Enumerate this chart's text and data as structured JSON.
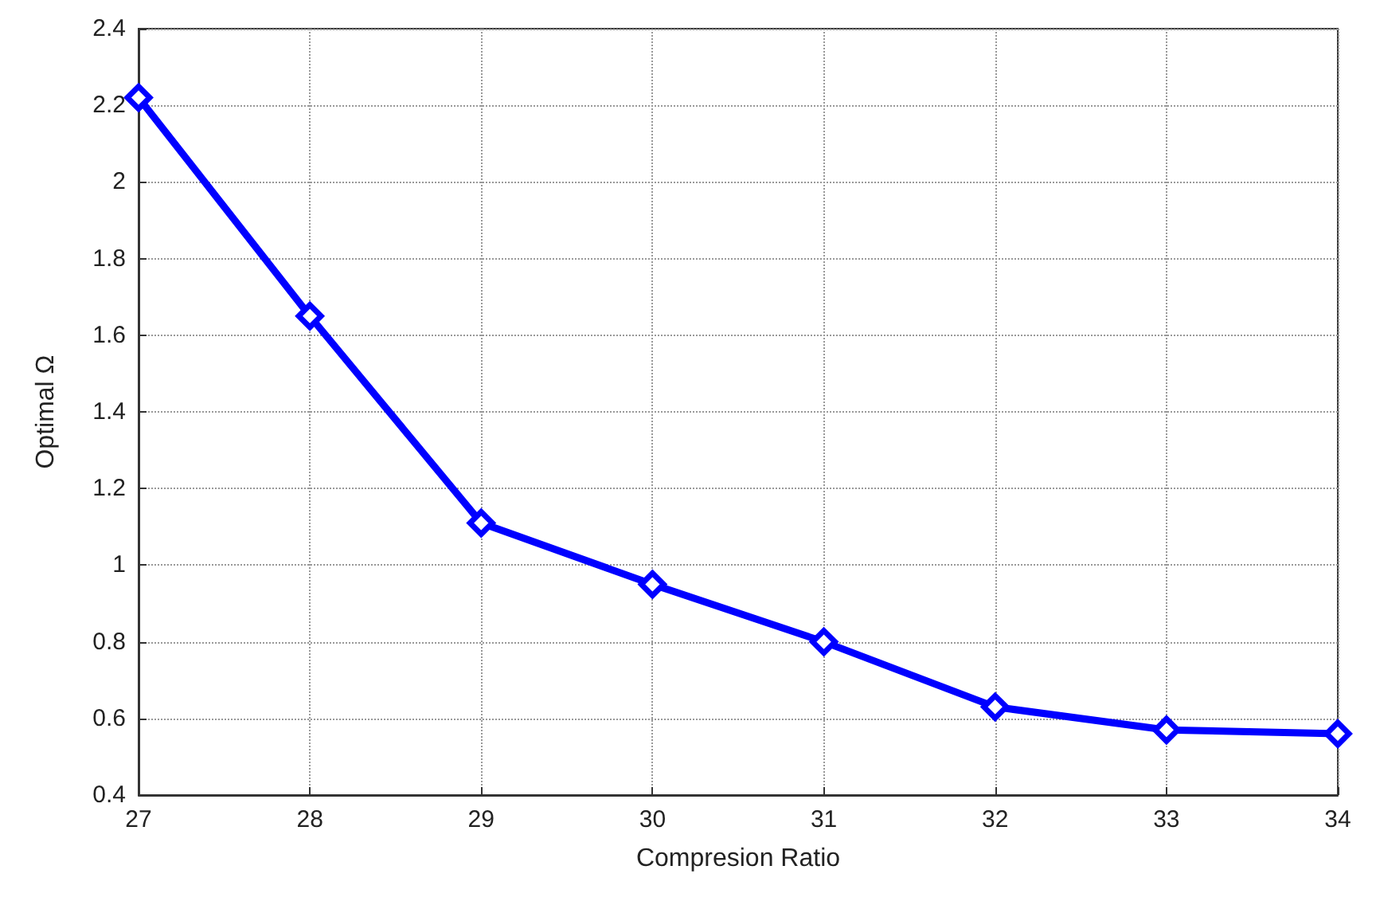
{
  "chart_data": {
    "type": "line",
    "xlabel": "Compresion Ratio",
    "ylabel": "Optimal Ω",
    "x": [
      27,
      28,
      29,
      30,
      31,
      32,
      33,
      34
    ],
    "series": [
      {
        "color": "#0000ff",
        "values": [
          2.22,
          1.65,
          1.11,
          0.95,
          0.8,
          0.63,
          0.57,
          0.56
        ]
      }
    ],
    "xlim": [
      27,
      34
    ],
    "xticks": [
      27,
      28,
      29,
      30,
      31,
      32,
      33,
      34
    ],
    "ylim": [
      0.4,
      2.4
    ],
    "yticks": [
      0.4,
      0.6,
      0.8,
      1,
      1.2,
      1.4,
      1.6,
      1.8,
      2,
      2.2,
      2.4
    ],
    "grid": true,
    "marker": "diamond",
    "line_style": "solid"
  }
}
